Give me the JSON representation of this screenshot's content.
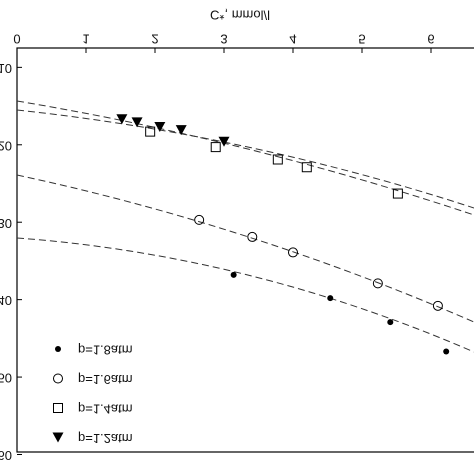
{
  "chart_data": {
    "type": "scatter",
    "xlabel": "C*, mmol/l",
    "xlim": [
      0,
      6.6
    ],
    "xticks": [
      0,
      1,
      2,
      3,
      4,
      5,
      6
    ],
    "ylim": [
      7.5,
      60
    ],
    "yticks": [
      10,
      20,
      30,
      40,
      50,
      60
    ],
    "series": [
      {
        "name": "p=1.8atm",
        "color": "#000000",
        "marker": "dot",
        "x": [
          3.14,
          4.54,
          5.41,
          6.22
        ],
        "values": [
          36.8,
          39.8,
          42.9,
          46.7
        ]
      },
      {
        "name": "p=1.6atm",
        "color": "#000000",
        "marker": "circle",
        "x": [
          2.64,
          3.41,
          4.0,
          5.23,
          6.1
        ],
        "values": [
          29.7,
          31.9,
          33.9,
          37.9,
          40.8
        ]
      },
      {
        "name": "p=1.4atm",
        "color": "#000000",
        "marker": "square",
        "x": [
          1.93,
          2.88,
          3.78,
          4.2,
          5.52
        ],
        "values": [
          18.3,
          20.3,
          21.9,
          22.9,
          26.3
        ]
      },
      {
        "name": "p=1.2atm",
        "color": "#000000",
        "marker": "triangle-down",
        "x": [
          1.52,
          1.74,
          2.07,
          2.38,
          3.0
        ],
        "values": [
          16.7,
          17.1,
          17.7,
          18.1,
          19.6
        ]
      }
    ]
  }
}
